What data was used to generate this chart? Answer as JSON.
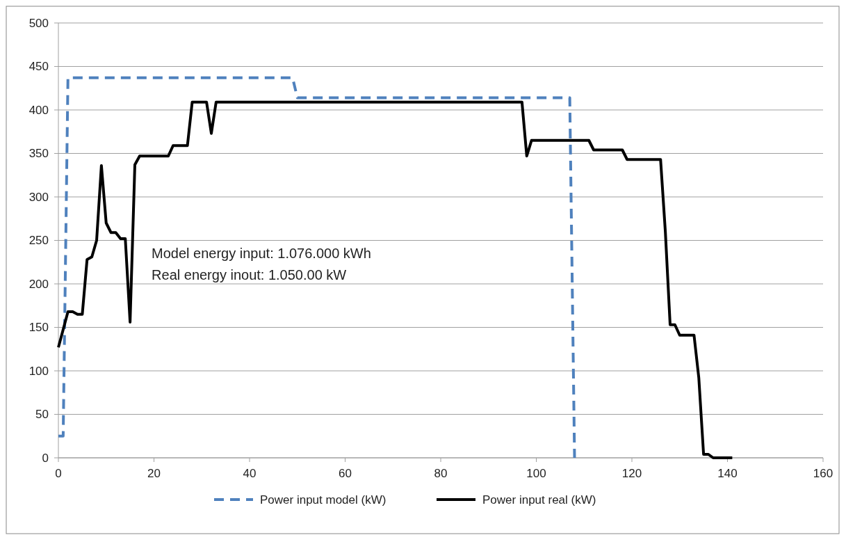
{
  "chart_data": {
    "type": "line",
    "xlim": [
      0,
      160
    ],
    "xticks": [
      0,
      20,
      40,
      60,
      80,
      100,
      120,
      140,
      160
    ],
    "ylim": [
      0,
      500
    ],
    "yticks": [
      0,
      50,
      100,
      150,
      200,
      250,
      300,
      350,
      400,
      450,
      500
    ],
    "grid": "y",
    "legend": "bottom",
    "annotations": [
      "Model energy input: 1.076.000 kWh",
      "Real energy inout: 1.050.00 kW"
    ],
    "series": [
      {
        "name": "Power input model (kW)",
        "color": "#4f81bd",
        "line_style": "dashed",
        "x": [
          0,
          1,
          2,
          49,
          50,
          107,
          108
        ],
        "values": [
          25,
          25,
          437,
          437,
          414,
          414,
          0
        ]
      },
      {
        "name": "Power input real (kW)",
        "color": "#000000",
        "line_style": "solid",
        "x": [
          0,
          2,
          3,
          4,
          5,
          6,
          7,
          8,
          9,
          10,
          11,
          12,
          13,
          14,
          15,
          16,
          17,
          23,
          24,
          27,
          28,
          31,
          32,
          33,
          97,
          98,
          99,
          111,
          112,
          118,
          119,
          126,
          127,
          128,
          129,
          130,
          133,
          134,
          135,
          136,
          137,
          141
        ],
        "values": [
          127,
          168,
          168,
          165,
          165,
          228,
          231,
          250,
          336,
          270,
          259,
          259,
          252,
          252,
          156,
          337,
          347,
          347,
          359,
          359,
          409,
          409,
          373,
          409,
          409,
          347,
          365,
          365,
          354,
          354,
          343,
          343,
          260,
          153,
          153,
          141,
          141,
          92,
          4,
          4,
          0,
          0
        ]
      }
    ]
  }
}
